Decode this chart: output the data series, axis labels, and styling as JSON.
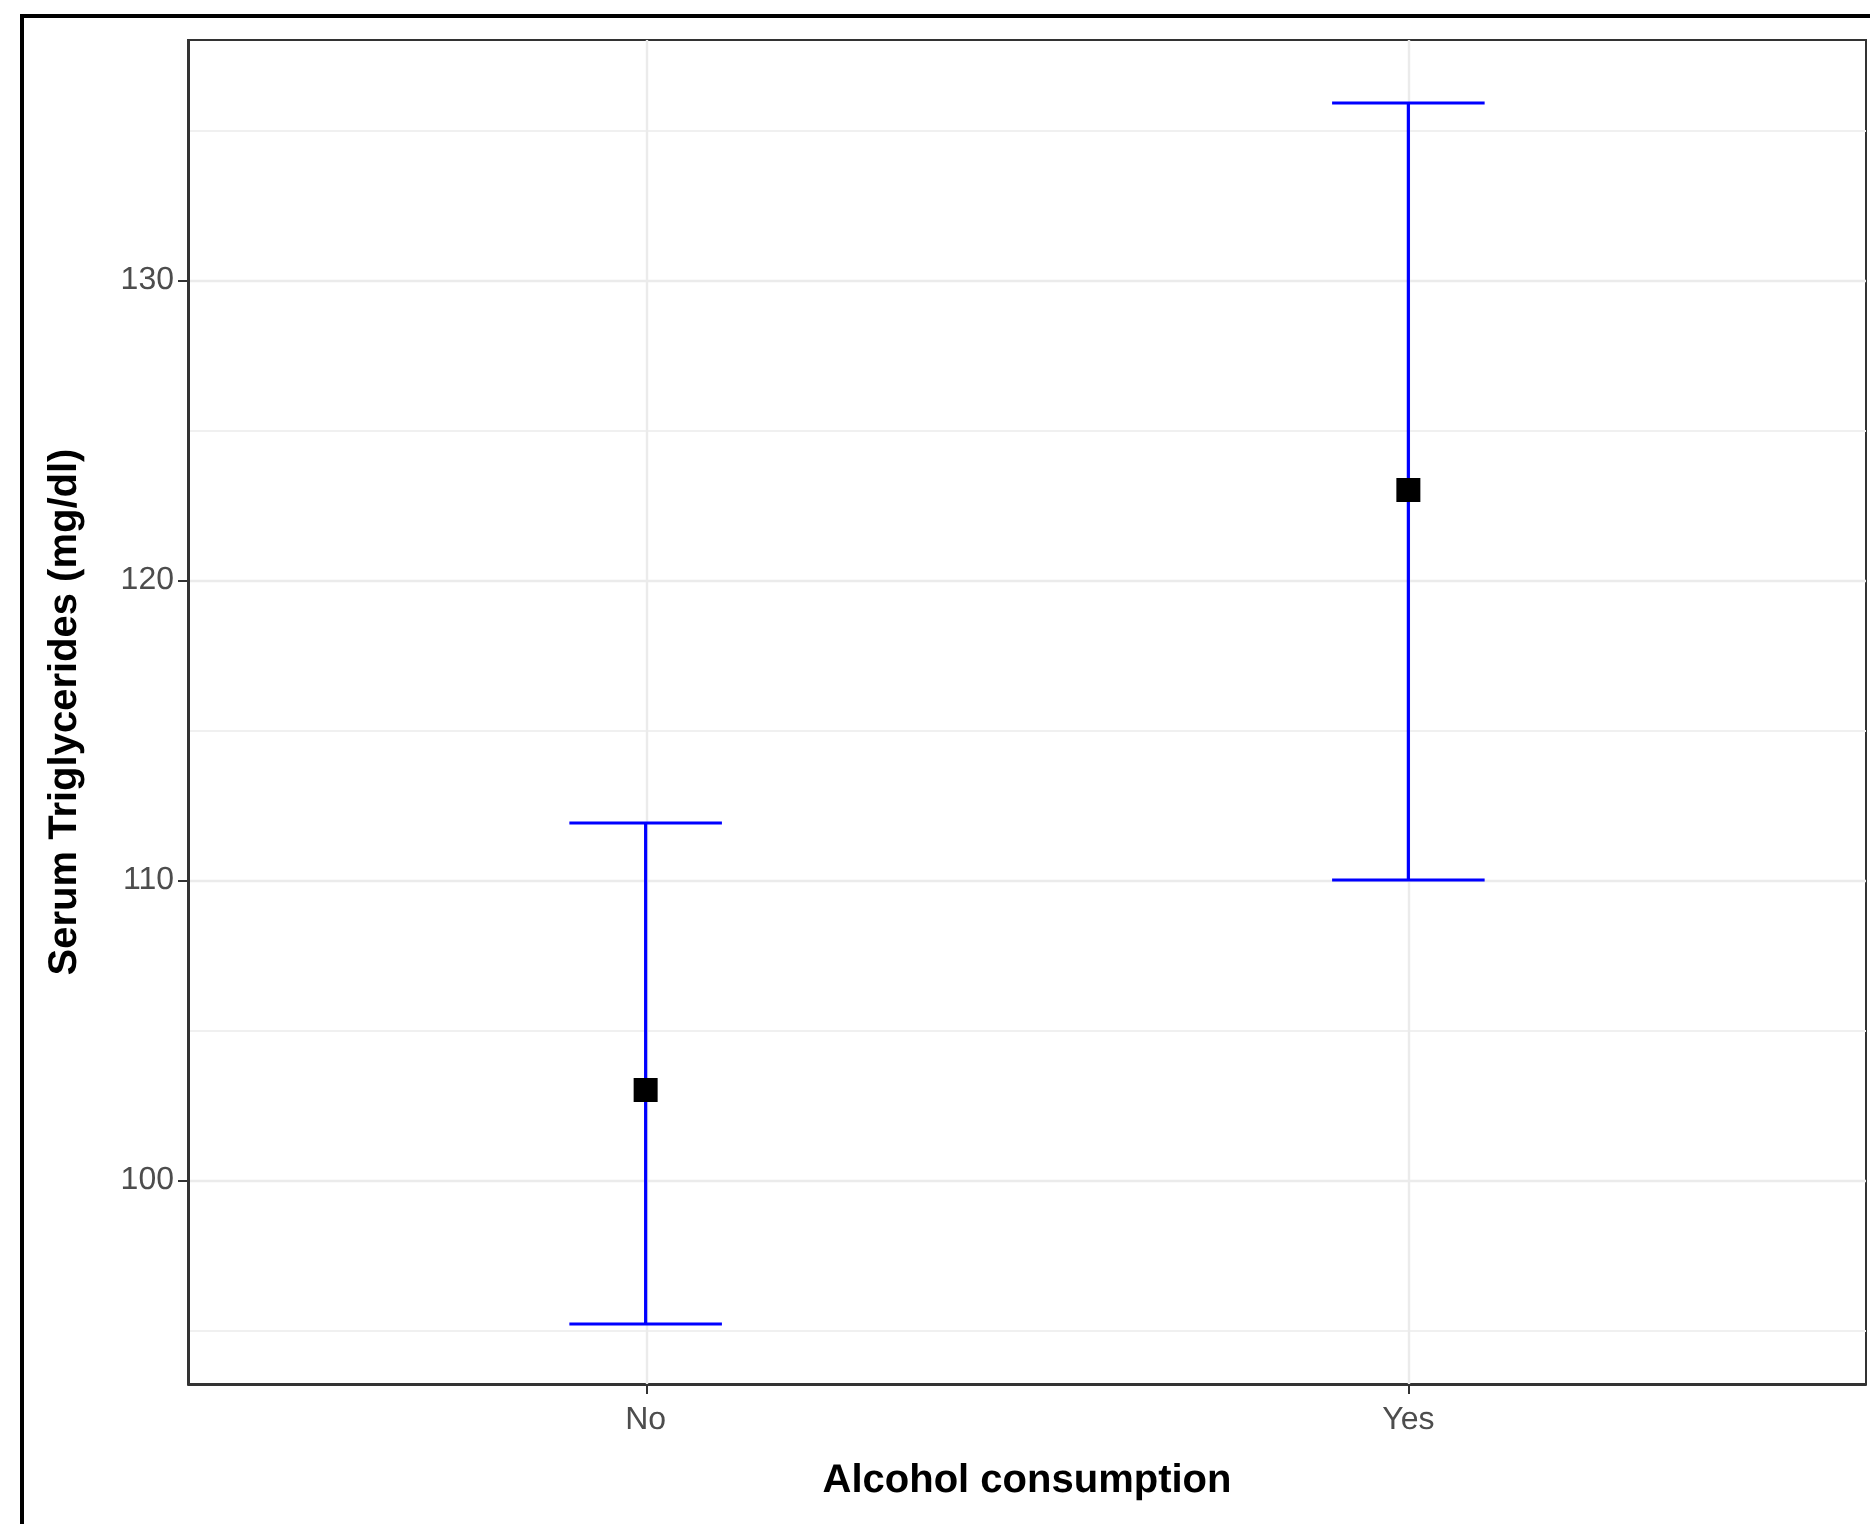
{
  "chart_data": {
    "type": "scatter",
    "xlabel": "Alcohol consumption",
    "ylabel": "Serum Triglycerides (mg/dl)",
    "categories": [
      "No",
      "Yes"
    ],
    "values": [
      103,
      123
    ],
    "errors": [
      [
        95.2,
        111.9
      ],
      [
        110,
        135.9
      ]
    ],
    "color": "#000000",
    "marker": "square",
    "ylim": [
      93.2,
      138
    ],
    "yticks": [
      {
        "value": 95,
        "label": null
      },
      100,
      {
        "value": 105,
        "label": null
      },
      110,
      {
        "value": 115,
        "label": null
      },
      120,
      {
        "value": 125,
        "label": null
      },
      130,
      {
        "value": 135,
        "label": null
      }
    ],
    "grid": true
  }
}
